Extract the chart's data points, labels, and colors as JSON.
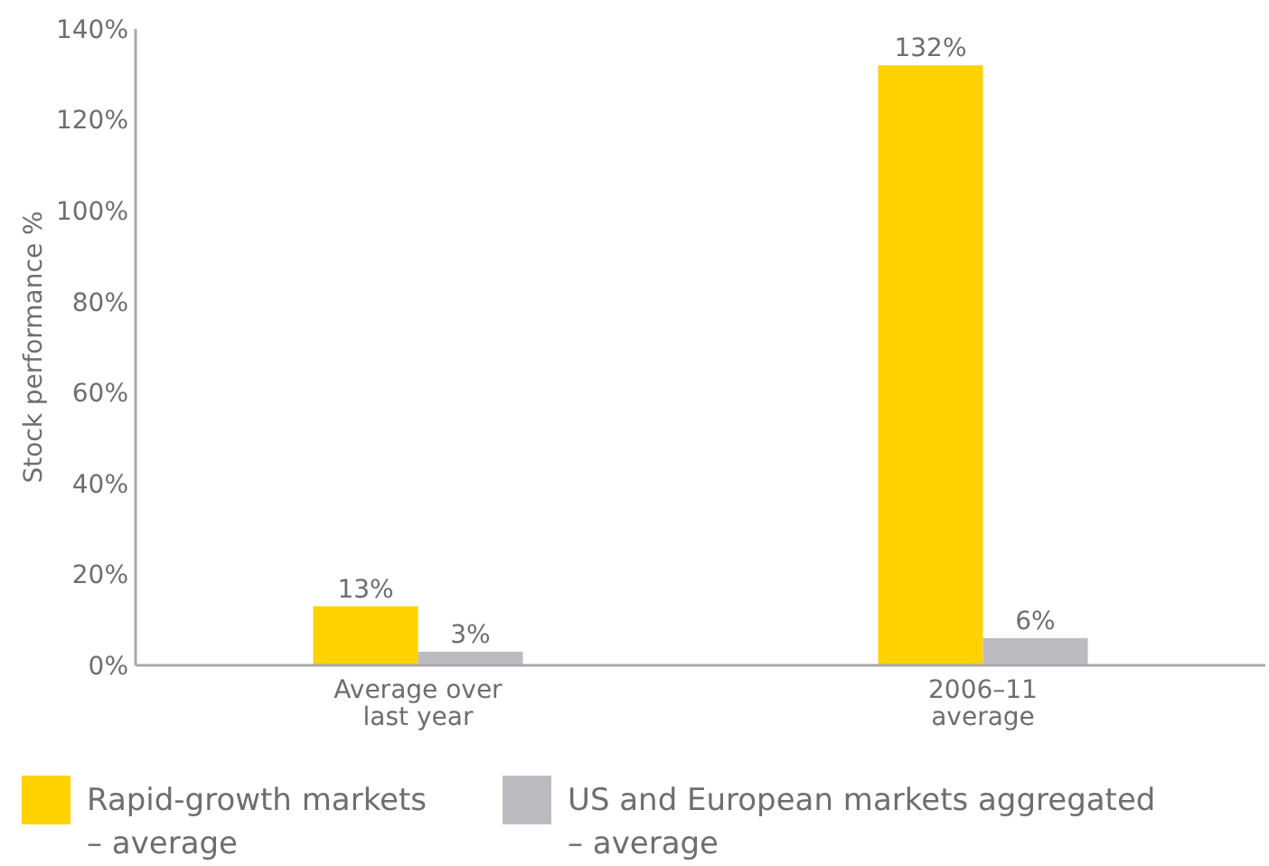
{
  "chart_data": {
    "type": "bar",
    "ylabel": "Stock performance  %",
    "categories": [
      "Average over\nlast year",
      "2006–11\naverage"
    ],
    "series": [
      {
        "name": "Rapid-growth markets\n– average",
        "color": "#ffd200",
        "values": [
          13,
          132
        ],
        "value_labels": [
          "13%",
          "132%"
        ]
      },
      {
        "name": "US and European markets aggregated\n– average",
        "color": "#bcbcc0",
        "values": [
          3,
          6
        ],
        "value_labels": [
          "3%",
          "6%"
        ]
      }
    ],
    "ylim": [
      0,
      140
    ],
    "yticks": [
      {
        "value": 0,
        "label": "0%"
      },
      {
        "value": 20,
        "label": "20%"
      },
      {
        "value": 40,
        "label": "40%"
      },
      {
        "value": 60,
        "label": "60%"
      },
      {
        "value": 80,
        "label": "80%"
      },
      {
        "value": 100,
        "label": "100%"
      },
      {
        "value": 120,
        "label": "120%"
      },
      {
        "value": 140,
        "label": "140%"
      }
    ],
    "grid": false,
    "legend": "bottom"
  }
}
